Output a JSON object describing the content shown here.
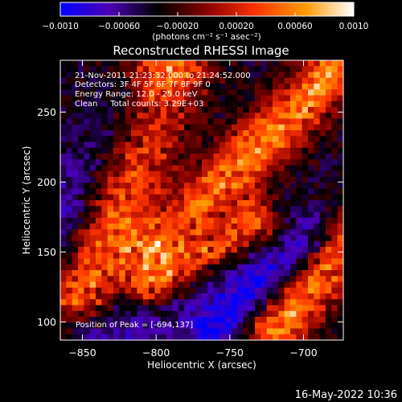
{
  "colorbar": {
    "ticks": [
      {
        "value": -0.001,
        "label": "−0.0010"
      },
      {
        "value": -0.0006,
        "label": "−0.00060"
      },
      {
        "value": -0.0002,
        "label": "−0.00020"
      },
      {
        "value": 0.0002,
        "label": "0.00020"
      },
      {
        "value": 0.0006,
        "label": "0.00060"
      },
      {
        "value": 0.001,
        "label": "0.0010"
      }
    ],
    "range": [
      -0.001,
      0.001
    ],
    "units_label": "(photons cm⁻² s⁻¹ asec⁻²)",
    "colors": [
      "#0000ff",
      "#4b00b4",
      "#000000",
      "#8a0000",
      "#ff3300",
      "#ff9900",
      "#ffffff"
    ]
  },
  "chart_data": {
    "type": "heatmap",
    "title": "Reconstructed RHESSI Image",
    "xlabel": "Heliocentric X (arcsec)",
    "ylabel": "Heliocentric Y (arcsec)",
    "xlim": [
      -865,
      -673
    ],
    "ylim": [
      87,
      287
    ],
    "xticks": [
      {
        "value": -850,
        "label": "−850"
      },
      {
        "value": -800,
        "label": "−800"
      },
      {
        "value": -750,
        "label": "−750"
      },
      {
        "value": -700,
        "label": "−700"
      }
    ],
    "yticks": [
      {
        "value": 100,
        "label": "100"
      },
      {
        "value": 150,
        "label": "150"
      },
      {
        "value": 200,
        "label": "200"
      },
      {
        "value": 250,
        "label": "250"
      }
    ],
    "annotations": {
      "time_range": "21-Nov-2011 21:23:32.000 to 21:24:52.000",
      "detectors": "Detectors: 3F 4F 5F 6F 7F 8F 9F 0",
      "energy_range": "Energy Range: 12.0 - 25.0 keV",
      "clean_counts": "Clean     Total counts: 3.29E+03",
      "peak_position": "Position of Peak = [-694,137]"
    },
    "bright_ridges": [
      {
        "x1": -850,
        "y1": 120,
        "x2": -790,
        "y2": 285,
        "width": 18,
        "peak": 0.00095
      },
      {
        "x1": -800,
        "y1": 150,
        "x2": -680,
        "y2": 280,
        "width": 14,
        "peak": 0.00088
      },
      {
        "x1": -805,
        "y1": 125,
        "x2": -735,
        "y2": 170,
        "width": 12,
        "peak": 0.00092
      },
      {
        "x1": -720,
        "y1": 95,
        "x2": -674,
        "y2": 157,
        "width": 14,
        "peak": 0.001
      }
    ],
    "dark_ridges": [
      {
        "x1": -865,
        "y1": 160,
        "x2": -810,
        "y2": 250,
        "width": 18,
        "value": -0.0005
      },
      {
        "x1": -840,
        "y1": 90,
        "x2": -760,
        "y2": 160,
        "width": 20,
        "value": -0.00045
      },
      {
        "x1": -760,
        "y1": 95,
        "x2": -690,
        "y2": 160,
        "width": 14,
        "value": -0.0006
      }
    ]
  },
  "footer": {
    "timestamp": "16-May-2022 10:36"
  }
}
